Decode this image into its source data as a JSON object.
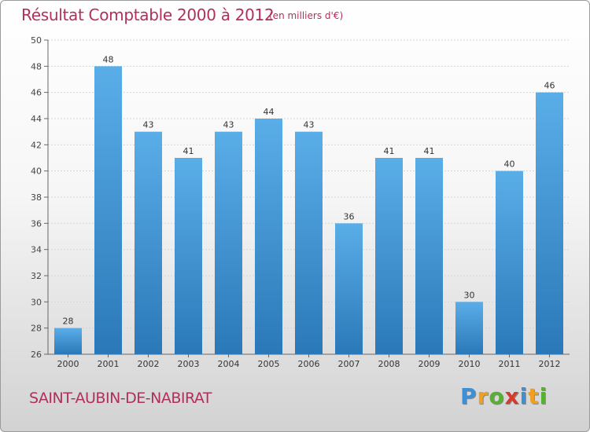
{
  "chart_data": {
    "type": "bar",
    "title": "Résultat Comptable 2000 à 2012",
    "subtitle": "(en milliers d'€)",
    "categories": [
      "2000",
      "2001",
      "2002",
      "2003",
      "2004",
      "2005",
      "2006",
      "2007",
      "2008",
      "2009",
      "2010",
      "2011",
      "2012"
    ],
    "values": [
      28,
      48,
      43,
      41,
      43,
      44,
      43,
      36,
      41,
      41,
      30,
      40,
      46
    ],
    "ylim": [
      26,
      50
    ],
    "yticks": [
      26,
      28,
      30,
      32,
      34,
      36,
      38,
      40,
      42,
      44,
      46,
      48,
      50
    ],
    "grid": true,
    "xlabel": "",
    "ylabel": ""
  },
  "commune": "SAINT-AUBIN-DE-NABIRAT",
  "brand": {
    "letters": [
      "P",
      "r",
      "o",
      "x",
      "i",
      "t",
      "i"
    ],
    "colors": [
      "#3d8fd6",
      "#f0a020",
      "#58b030",
      "#d83a2a",
      "#3d8fd6",
      "#f0a020",
      "#58b030"
    ]
  },
  "colors": {
    "bar_light": "#5aaee8",
    "bar_dark": "#2a78b8",
    "text_accent": "#b0305b"
  }
}
